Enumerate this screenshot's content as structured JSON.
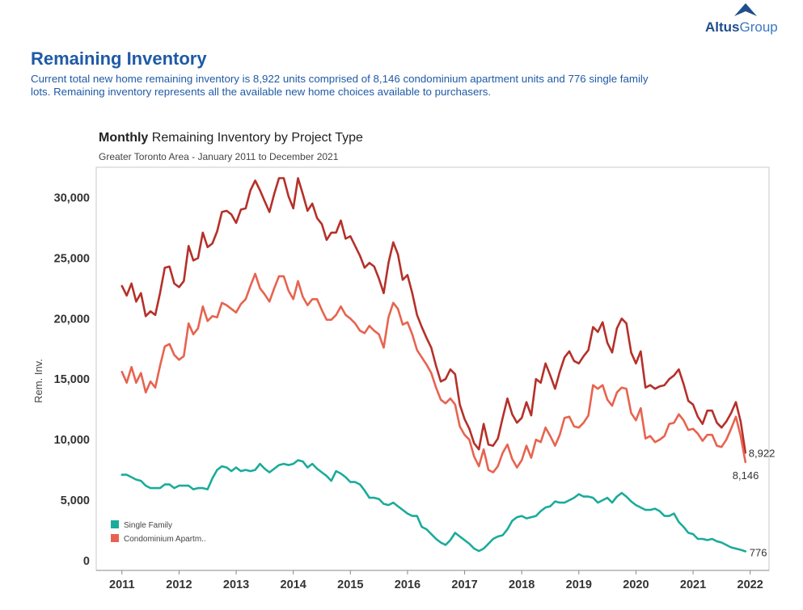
{
  "logo": {
    "brand_a": "Altus",
    "brand_b": "Group"
  },
  "header": {
    "title": "Remaining Inventory",
    "intro": "Current total new home remaining inventory is 8,922 units comprised of 8,146 condominium apartment units and 776 single family lots. Remaining inventory represents all the available new home choices available to purchasers."
  },
  "colors": {
    "total": "#b5302a",
    "condo": "#e8634f",
    "single": "#1aab9b",
    "title_blue": "#1f5aa6"
  },
  "chart_data": {
    "type": "line",
    "title_bold": "Monthly",
    "title_rest": "Remaining Inventory by Project Type",
    "subtitle": "Greater Toronto Area - January 2011 to December 2021",
    "ylabel": "Rem. Inv.",
    "ylim": [
      -800,
      32500
    ],
    "xlim": [
      2010.55,
      2022.33
    ],
    "yticks": [
      0,
      5000,
      10000,
      15000,
      20000,
      25000,
      30000
    ],
    "ytick_labels": [
      "0",
      "5,000",
      "10,000",
      "15,000",
      "20,000",
      "25,000",
      "30,000"
    ],
    "xticks": [
      2011,
      2012,
      2013,
      2014,
      2015,
      2016,
      2017,
      2018,
      2019,
      2020,
      2021,
      2022
    ],
    "xtick_labels": [
      "2011",
      "2012",
      "2013",
      "2014",
      "2015",
      "2016",
      "2017",
      "2018",
      "2019",
      "2020",
      "2021",
      "2022"
    ],
    "legend": {
      "placement": "bottom-left",
      "items": [
        {
          "label": "Single Family",
          "color": "#1aab9b"
        },
        {
          "label": "Condominium Apartm..",
          "color": "#e8634f"
        }
      ]
    },
    "end_labels": {
      "total": "8,922",
      "condo": "8,146",
      "single": "776"
    },
    "x_start": 2011.0,
    "x_step": 0.08333,
    "series": [
      {
        "key": "total",
        "color": "#b5302a",
        "values": [
          22700,
          21900,
          22900,
          21400,
          22100,
          20200,
          20600,
          20300,
          22100,
          24200,
          24300,
          22900,
          22600,
          23100,
          26000,
          24800,
          25000,
          27100,
          25900,
          26200,
          27200,
          28800,
          28900,
          28600,
          27900,
          29000,
          29100,
          30600,
          31400,
          30600,
          29700,
          28800,
          30300,
          31600,
          31600,
          30100,
          29100,
          31600,
          30300,
          28900,
          29500,
          28300,
          27800,
          26500,
          27100,
          27100,
          28100,
          26600,
          26800,
          26000,
          25200,
          24200,
          24600,
          24300,
          23300,
          22100,
          24600,
          26300,
          25300,
          23200,
          23600,
          22100,
          20300,
          19300,
          18400,
          17600,
          16100,
          14800,
          15000,
          15800,
          15400,
          12900,
          11700,
          10900,
          9700,
          9200,
          11300,
          9600,
          9500,
          10100,
          11800,
          13400,
          12100,
          11400,
          11800,
          13100,
          12000,
          15000,
          14700,
          16300,
          15300,
          14200,
          15600,
          16800,
          17300,
          16500,
          16300,
          16900,
          17400,
          19300,
          18900,
          19700,
          18000,
          17200,
          19200,
          20000,
          19600,
          17200,
          16300,
          17300,
          14300,
          14500,
          14200,
          14400,
          14500,
          15000,
          15300,
          15800,
          14600,
          13200,
          12900,
          11900,
          11300,
          12400,
          12400,
          11400,
          11000,
          11500,
          12200,
          13100,
          11500,
          8922
        ]
      },
      {
        "key": "condo",
        "color": "#e8634f",
        "values": [
          15600,
          14700,
          16000,
          14700,
          15500,
          13900,
          14800,
          14300,
          16100,
          17700,
          17900,
          17000,
          16600,
          16900,
          19600,
          18700,
          19200,
          21000,
          19800,
          20200,
          20100,
          21300,
          21100,
          20800,
          20500,
          21200,
          21600,
          22700,
          23700,
          22500,
          22000,
          21400,
          22500,
          23500,
          23500,
          22300,
          21600,
          23100,
          21800,
          21100,
          21600,
          21600,
          20700,
          19900,
          19900,
          20300,
          21000,
          20300,
          20000,
          19600,
          19000,
          18800,
          19400,
          19000,
          18700,
          17600,
          20100,
          21300,
          20800,
          19500,
          19700,
          18700,
          17400,
          16800,
          16200,
          15500,
          14300,
          13300,
          13000,
          13400,
          12900,
          11100,
          10400,
          10000,
          8600,
          7800,
          9200,
          7500,
          7300,
          7800,
          8900,
          9600,
          8400,
          7700,
          8300,
          9500,
          8500,
          10000,
          9800,
          11000,
          10300,
          9500,
          10400,
          11800,
          11900,
          11100,
          11000,
          11400,
          12000,
          14500,
          14200,
          14500,
          13300,
          12800,
          13900,
          14300,
          14200,
          12200,
          11600,
          12600,
          10100,
          10300,
          9800,
          10000,
          10300,
          11300,
          11400,
          12100,
          11600,
          10800,
          10900,
          10500,
          9900,
          10400,
          10400,
          9500,
          9400,
          10000,
          10900,
          11900,
          10300,
          8146
        ]
      },
      {
        "key": "single",
        "color": "#1aab9b",
        "values": [
          7100,
          7100,
          6900,
          6700,
          6600,
          6200,
          6000,
          6000,
          6000,
          6300,
          6300,
          6000,
          6200,
          6200,
          6200,
          5900,
          6000,
          6000,
          5900,
          6800,
          7500,
          7800,
          7700,
          7400,
          7700,
          7400,
          7500,
          7400,
          7500,
          8000,
          7600,
          7300,
          7600,
          7900,
          8000,
          7900,
          8000,
          8300,
          8200,
          7700,
          8000,
          7600,
          7300,
          7000,
          6600,
          7400,
          7200,
          6900,
          6500,
          6500,
          6300,
          5800,
          5200,
          5200,
          5100,
          4700,
          4600,
          4800,
          4500,
          4200,
          3900,
          3700,
          3700,
          2800,
          2600,
          2200,
          1800,
          1500,
          1300,
          1700,
          2300,
          2000,
          1700,
          1400,
          1000,
          800,
          1000,
          1400,
          1800,
          2000,
          2100,
          2600,
          3300,
          3600,
          3700,
          3500,
          3600,
          3700,
          4100,
          4400,
          4500,
          4900,
          4800,
          4800,
          5000,
          5200,
          5500,
          5300,
          5300,
          5200,
          4800,
          5000,
          5200,
          4800,
          5300,
          5600,
          5300,
          4900,
          4600,
          4400,
          4200,
          4200,
          4300,
          4100,
          3700,
          3700,
          3900,
          3200,
          2800,
          2300,
          2200,
          1800,
          1800,
          1700,
          1800,
          1600,
          1500,
          1300,
          1100,
          1000,
          900,
          776
        ]
      }
    ]
  }
}
